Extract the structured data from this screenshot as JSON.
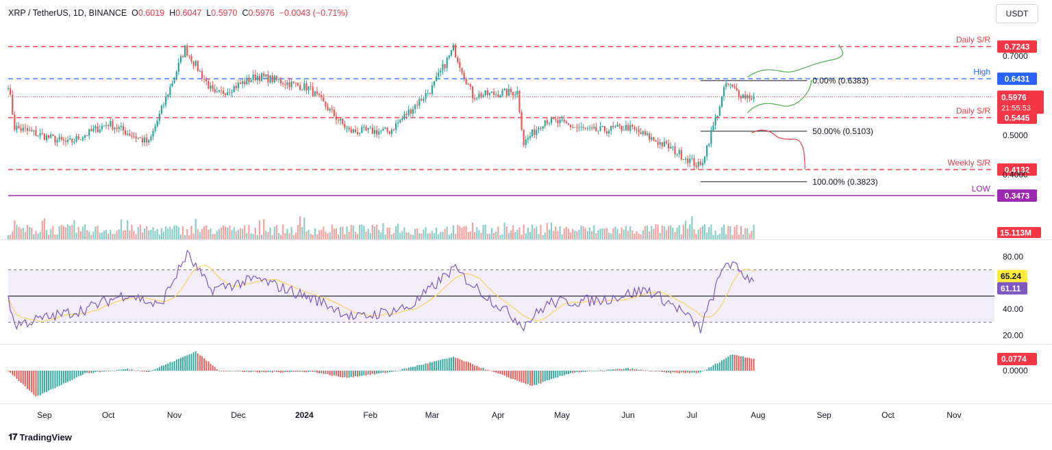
{
  "header": {
    "symbol": "XRP / TetherUS, 1D, BINANCE",
    "o_label": "O",
    "o_val": "0.6019",
    "h_label": "H",
    "h_val": "0.6047",
    "l_label": "L",
    "l_val": "0.5970",
    "c_label": "C",
    "c_val": "0.5976",
    "change": "−0.0043 (−0.71%)"
  },
  "currency_button": "USDT",
  "brand": "TradingView",
  "colors": {
    "up": "#26a69a",
    "down": "#ef5350",
    "sr": "#f23645",
    "high": "#2962ff",
    "low": "#9c27b0",
    "rsi": "#7e57c2",
    "rsi_ma": "#f5d76e"
  },
  "chart_data": [
    {
      "type": "candlestick",
      "x_axis_labels": [
        "Sep",
        "Oct",
        "Nov",
        "Dec",
        "2024",
        "Feb",
        "Mar",
        "Apr",
        "May",
        "Jun",
        "Jul",
        "Aug",
        "Sep",
        "Oct",
        "Nov"
      ],
      "y_axis_labels": [
        "0.7000",
        "0.5000",
        "0.4000"
      ],
      "ylim": [
        0.33,
        0.78
      ],
      "key_points": [
        {
          "x": "2023-08-15",
          "y": 0.63
        },
        {
          "x": "2023-08-18",
          "y": 0.52
        },
        {
          "x": "2023-09-12",
          "y": 0.48
        },
        {
          "x": "2023-10-01",
          "y": 0.53
        },
        {
          "x": "2023-10-20",
          "y": 0.48
        },
        {
          "x": "2023-11-06",
          "y": 0.72
        },
        {
          "x": "2023-11-20",
          "y": 0.6
        },
        {
          "x": "2023-12-10",
          "y": 0.65
        },
        {
          "x": "2024-01-03",
          "y": 0.62
        },
        {
          "x": "2024-01-22",
          "y": 0.51
        },
        {
          "x": "2024-02-10",
          "y": 0.51
        },
        {
          "x": "2024-03-01",
          "y": 0.62
        },
        {
          "x": "2024-03-11",
          "y": 0.72
        },
        {
          "x": "2024-03-20",
          "y": 0.6
        },
        {
          "x": "2024-04-10",
          "y": 0.61
        },
        {
          "x": "2024-04-13",
          "y": 0.48
        },
        {
          "x": "2024-04-23",
          "y": 0.54
        },
        {
          "x": "2024-05-15",
          "y": 0.51
        },
        {
          "x": "2024-06-01",
          "y": 0.52
        },
        {
          "x": "2024-06-20",
          "y": 0.47
        },
        {
          "x": "2024-07-05",
          "y": 0.42
        },
        {
          "x": "2024-07-12",
          "y": 0.54
        },
        {
          "x": "2024-07-17",
          "y": 0.63
        },
        {
          "x": "2024-07-25",
          "y": 0.6
        },
        {
          "x": "2024-07-30",
          "y": 0.5976
        }
      ],
      "levels": [
        {
          "name": "Daily S/R",
          "value": 0.7243,
          "label": "0.7243",
          "color": "#f23645",
          "style": "dashed"
        },
        {
          "name": "High",
          "value": 0.6431,
          "label": "0.6431",
          "color": "#2962ff",
          "style": "dashed"
        },
        {
          "name": "Daily S/R",
          "value": 0.5445,
          "label": "0.5445",
          "color": "#f23645",
          "style": "dashed"
        },
        {
          "name": "Weekly S/R",
          "value": 0.4132,
          "label": "0.4132",
          "color": "#f23645",
          "style": "dashed"
        },
        {
          "name": "LOW",
          "value": 0.3473,
          "label": "0.3473",
          "color": "#9c27b0",
          "style": "solid"
        }
      ],
      "last_price": {
        "value": 0.5976,
        "label": "0.5976",
        "countdown": "21:55:53"
      },
      "fibonacci": [
        {
          "label": "0.00% (0.6383)",
          "value": 0.6383
        },
        {
          "label": "50.00% (0.5103)",
          "value": 0.5103
        },
        {
          "label": "100.00% (0.3823)",
          "value": 0.3823
        }
      ]
    },
    {
      "type": "bar",
      "name": "Volume",
      "last_label": "15.113M"
    },
    {
      "type": "line",
      "name": "RSI",
      "y_axis_labels": [
        "80.00",
        "40.00",
        "20.00"
      ],
      "ylim": [
        15,
        87
      ],
      "bands": [
        70,
        30
      ],
      "midline": 50,
      "rsi_value_label": "61.11",
      "ma_value_label": "65.24",
      "key_points": [
        {
          "x": "2023-08-15",
          "y": 50
        },
        {
          "x": "2023-08-18",
          "y": 28
        },
        {
          "x": "2023-09-20",
          "y": 40
        },
        {
          "x": "2023-10-10",
          "y": 52
        },
        {
          "x": "2023-10-25",
          "y": 42
        },
        {
          "x": "2023-11-07",
          "y": 82
        },
        {
          "x": "2023-11-18",
          "y": 55
        },
        {
          "x": "2023-12-10",
          "y": 63
        },
        {
          "x": "2024-01-10",
          "y": 45
        },
        {
          "x": "2024-01-25",
          "y": 33
        },
        {
          "x": "2024-02-20",
          "y": 42
        },
        {
          "x": "2024-03-11",
          "y": 71
        },
        {
          "x": "2024-03-25",
          "y": 52
        },
        {
          "x": "2024-04-13",
          "y": 28
        },
        {
          "x": "2024-04-25",
          "y": 45
        },
        {
          "x": "2024-05-20",
          "y": 47
        },
        {
          "x": "2024-06-10",
          "y": 55
        },
        {
          "x": "2024-06-25",
          "y": 40
        },
        {
          "x": "2024-07-05",
          "y": 25
        },
        {
          "x": "2024-07-17",
          "y": 77
        },
        {
          "x": "2024-07-30",
          "y": 61
        }
      ]
    },
    {
      "type": "bar",
      "name": "MACD histogram",
      "y_axis_labels": [
        "0.0000"
      ],
      "value_label": "0.0774",
      "ylim": [
        -0.055,
        0.045
      ],
      "key_points": [
        {
          "x": "2023-08-15",
          "y": 0.0
        },
        {
          "x": "2023-08-28",
          "y": -0.048
        },
        {
          "x": "2023-09-20",
          "y": -0.005
        },
        {
          "x": "2023-10-10",
          "y": 0.003
        },
        {
          "x": "2023-10-20",
          "y": -0.002
        },
        {
          "x": "2023-11-11",
          "y": 0.035
        },
        {
          "x": "2023-11-22",
          "y": 0.0
        },
        {
          "x": "2023-12-10",
          "y": -0.003
        },
        {
          "x": "2024-01-05",
          "y": -0.002
        },
        {
          "x": "2024-01-20",
          "y": -0.013
        },
        {
          "x": "2024-02-10",
          "y": -0.003
        },
        {
          "x": "2024-03-11",
          "y": 0.025
        },
        {
          "x": "2024-03-28",
          "y": 0.0
        },
        {
          "x": "2024-04-17",
          "y": -0.028
        },
        {
          "x": "2024-05-05",
          "y": -0.004
        },
        {
          "x": "2024-06-01",
          "y": 0.004
        },
        {
          "x": "2024-06-20",
          "y": -0.004
        },
        {
          "x": "2024-07-05",
          "y": -0.004
        },
        {
          "x": "2024-07-20",
          "y": 0.03
        },
        {
          "x": "2024-07-30",
          "y": 0.022
        }
      ]
    }
  ]
}
